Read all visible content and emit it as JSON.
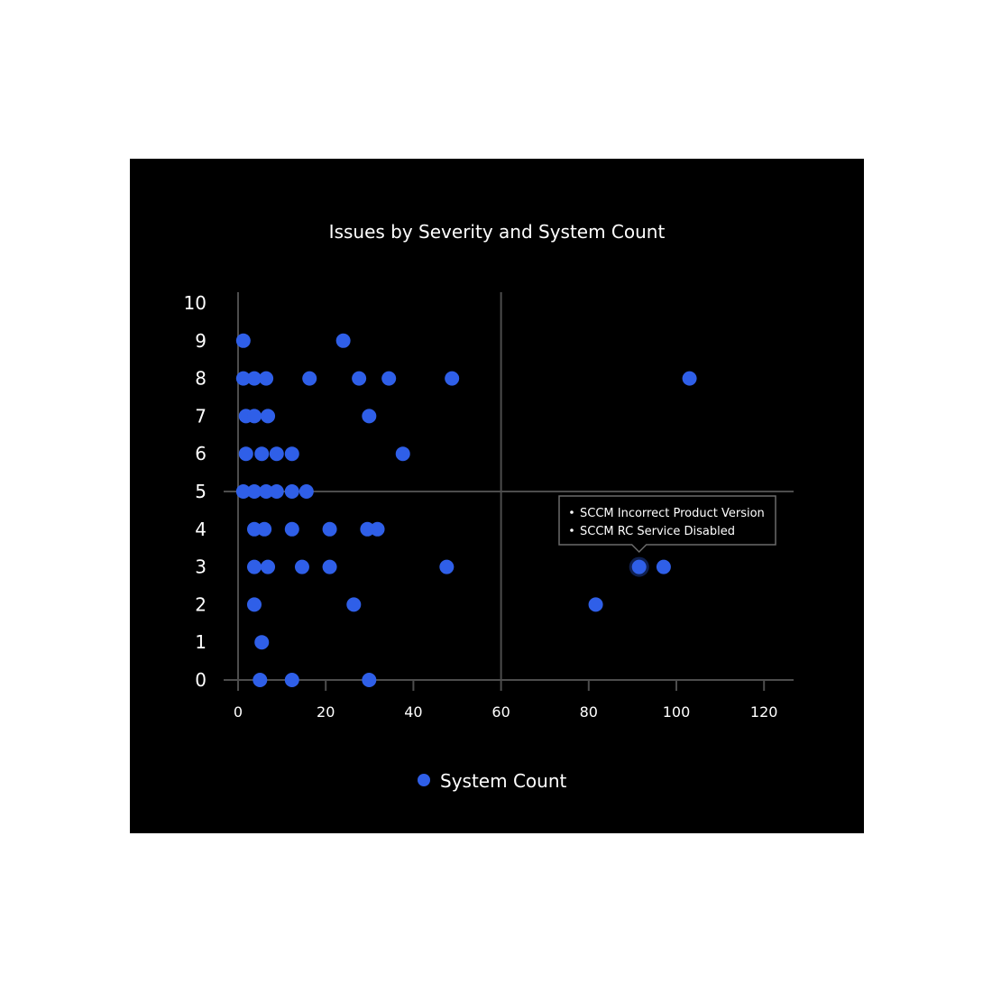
{
  "colors": {
    "background": "#000000",
    "point": "#2f5fe8",
    "axis": "#4d4d4d",
    "text": "#ffffff",
    "tooltip_border": "#6b6b6b"
  },
  "chart_data": {
    "type": "scatter",
    "title": "Issues by Severity and System Count",
    "xlabel": "",
    "ylabel": "",
    "xlim": [
      0,
      125
    ],
    "ylim": [
      0,
      10
    ],
    "x_ticks": [
      0,
      20,
      40,
      60,
      80,
      100,
      120
    ],
    "y_ticks": [
      0,
      1,
      2,
      3,
      4,
      5,
      6,
      7,
      8,
      9,
      10
    ],
    "quadrant_lines": {
      "x": 60,
      "y": 5
    },
    "grid": false,
    "legend": {
      "position": "bottom-center",
      "entries": [
        "System Count"
      ]
    },
    "series": [
      {
        "name": "System Count",
        "points": [
          {
            "x": 1.2,
            "y": 9
          },
          {
            "x": 24,
            "y": 9
          },
          {
            "x": 1.2,
            "y": 8
          },
          {
            "x": 3.7,
            "y": 8
          },
          {
            "x": 6.4,
            "y": 8
          },
          {
            "x": 16.3,
            "y": 8
          },
          {
            "x": 27.6,
            "y": 8
          },
          {
            "x": 34.4,
            "y": 8
          },
          {
            "x": 48.8,
            "y": 8
          },
          {
            "x": 103,
            "y": 8
          },
          {
            "x": 1.8,
            "y": 7
          },
          {
            "x": 3.7,
            "y": 7
          },
          {
            "x": 6.8,
            "y": 7
          },
          {
            "x": 29.9,
            "y": 7
          },
          {
            "x": 1.8,
            "y": 6
          },
          {
            "x": 5.4,
            "y": 6
          },
          {
            "x": 8.8,
            "y": 6
          },
          {
            "x": 12.3,
            "y": 6
          },
          {
            "x": 37.6,
            "y": 6
          },
          {
            "x": 1.2,
            "y": 5
          },
          {
            "x": 3.7,
            "y": 5
          },
          {
            "x": 6.4,
            "y": 5
          },
          {
            "x": 8.8,
            "y": 5
          },
          {
            "x": 12.3,
            "y": 5
          },
          {
            "x": 15.6,
            "y": 5
          },
          {
            "x": 3.7,
            "y": 4
          },
          {
            "x": 6,
            "y": 4
          },
          {
            "x": 12.3,
            "y": 4
          },
          {
            "x": 20.9,
            "y": 4
          },
          {
            "x": 29.5,
            "y": 4
          },
          {
            "x": 31.8,
            "y": 4
          },
          {
            "x": 3.7,
            "y": 3
          },
          {
            "x": 6.8,
            "y": 3
          },
          {
            "x": 14.6,
            "y": 3
          },
          {
            "x": 20.9,
            "y": 3
          },
          {
            "x": 47.6,
            "y": 3
          },
          {
            "x": 91.5,
            "y": 3
          },
          {
            "x": 97.1,
            "y": 3
          },
          {
            "x": 3.7,
            "y": 2
          },
          {
            "x": 26.4,
            "y": 2
          },
          {
            "x": 81.6,
            "y": 2
          },
          {
            "x": 5.4,
            "y": 1
          },
          {
            "x": 5,
            "y": 0
          },
          {
            "x": 12.3,
            "y": 0
          },
          {
            "x": 29.9,
            "y": 0
          }
        ]
      }
    ],
    "tooltip": {
      "point": {
        "x": 91.5,
        "y": 3
      },
      "items": [
        "SCCM Incorrect Product Version",
        "SCCM RC Service Disabled"
      ]
    }
  }
}
